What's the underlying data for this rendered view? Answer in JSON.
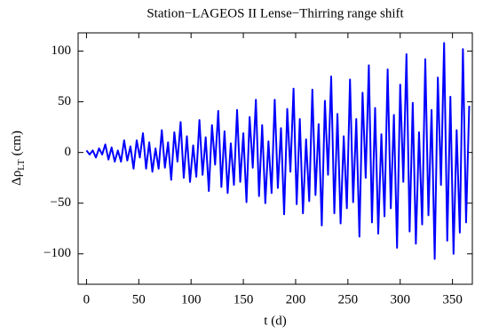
{
  "chart_data": {
    "type": "line",
    "title": "Station−LAGEOS II Lense−Thirring  range shift",
    "xlabel": "t (d)",
    "ylabel": {
      "symbol": "Δρ",
      "subscript": "LT",
      "unit": "(cm)"
    },
    "x": [
      0,
      3,
      6,
      9,
      12,
      15,
      18,
      21,
      24,
      27,
      30,
      33,
      36,
      39,
      42,
      45,
      48,
      51,
      54,
      57,
      60,
      63,
      66,
      69,
      72,
      75,
      78,
      81,
      84,
      87,
      90,
      93,
      96,
      99,
      102,
      105,
      108,
      111,
      114,
      117,
      120,
      123,
      126,
      129,
      132,
      135,
      138,
      141,
      144,
      147,
      150,
      153,
      156,
      159,
      162,
      165,
      168,
      171,
      174,
      177,
      180,
      183,
      186,
      189,
      192,
      195,
      198,
      201,
      204,
      207,
      210,
      213,
      216,
      219,
      222,
      225,
      228,
      231,
      234,
      237,
      240,
      243,
      246,
      249,
      252,
      255,
      258,
      261,
      264,
      267,
      270,
      273,
      276,
      279,
      282,
      285,
      288,
      291,
      294,
      297,
      300,
      303,
      306,
      309,
      312,
      315,
      318,
      321,
      324,
      327,
      330,
      333,
      336,
      339,
      342,
      345,
      348,
      351,
      354,
      357,
      360,
      363,
      366
    ],
    "series": [
      {
        "name": "Δρ",
        "color": "#0000ff",
        "values": [
          2,
          -2,
          2,
          -5,
          4,
          -2,
          8,
          -7,
          5,
          -9,
          2,
          -9,
          12,
          -8,
          6,
          -16,
          12,
          -5,
          19,
          -16,
          10,
          -19,
          4,
          -16,
          22,
          -15,
          10,
          -27,
          20,
          -9,
          30,
          -25,
          16,
          -29,
          7,
          -24,
          32,
          -22,
          15,
          -38,
          27,
          -12,
          41,
          -34,
          21,
          -40,
          9,
          -32,
          42,
          -29,
          19,
          -49,
          35,
          -15,
          52,
          -43,
          27,
          -50,
          11,
          -40,
          52,
          -35,
          24,
          -61,
          43,
          -19,
          63,
          -51,
          33,
          -60,
          13,
          -48,
          62,
          -42,
          28,
          -72,
          51,
          -22,
          75,
          -60,
          38,
          -70,
          16,
          -55,
          72,
          -49,
          33,
          -83,
          59,
          -25,
          86,
          -69,
          44,
          -80,
          18,
          -63,
          82,
          -55,
          37,
          -94,
          67,
          -29,
          97,
          -78,
          49,
          -90,
          20,
          -71,
          92,
          -62,
          42,
          -105,
          74,
          -32,
          108,
          -87,
          55,
          -100,
          22,
          -79,
          102,
          -69,
          46
        ]
      }
    ],
    "xlim": [
      -8,
      369
    ],
    "ylim": [
      -130,
      118
    ],
    "xticks": [
      0,
      50,
      100,
      150,
      200,
      250,
      300,
      350
    ],
    "yticks": [
      {
        "value": -100,
        "label": "−100"
      },
      {
        "value": -50,
        "label": "−50"
      },
      0,
      50,
      100
    ]
  }
}
